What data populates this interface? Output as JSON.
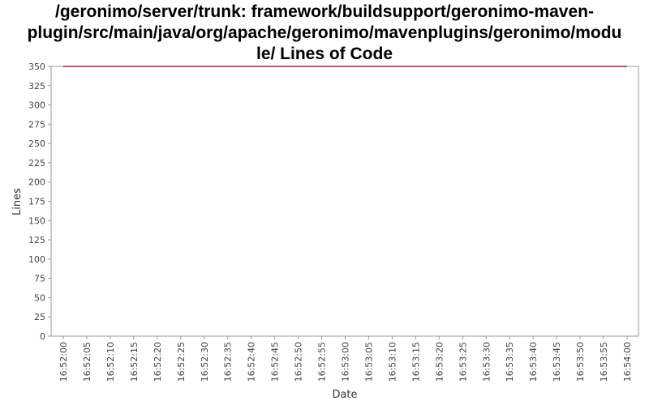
{
  "chart_data": {
    "type": "line",
    "title": "/geronimo/server/trunk: framework/buildsupport/geronimo-maven-\nplugin/src/main/java/org/apache/geronimo/mavenplugins/geronimo/modu\nle/ Lines of Code",
    "xlabel": "Date",
    "ylabel": "Lines",
    "ylim": [
      0,
      350
    ],
    "yticks": [
      0,
      25,
      50,
      75,
      100,
      125,
      150,
      175,
      200,
      225,
      250,
      275,
      300,
      325,
      350
    ],
    "xticks": [
      "16:52:00",
      "16:52:05",
      "16:52:10",
      "16:52:15",
      "16:52:20",
      "16:52:25",
      "16:52:30",
      "16:52:35",
      "16:52:40",
      "16:52:45",
      "16:52:50",
      "16:52:55",
      "16:53:00",
      "16:53:05",
      "16:53:10",
      "16:53:15",
      "16:53:20",
      "16:53:25",
      "16:53:30",
      "16:53:35",
      "16:53:40",
      "16:53:45",
      "16:53:50",
      "16:53:55",
      "16:54:00"
    ],
    "x": [
      "16:52:00",
      "16:54:00"
    ],
    "series": [
      {
        "values": [
          350,
          350
        ],
        "color": "#8b0000"
      }
    ],
    "grid": false,
    "legend": "none"
  }
}
